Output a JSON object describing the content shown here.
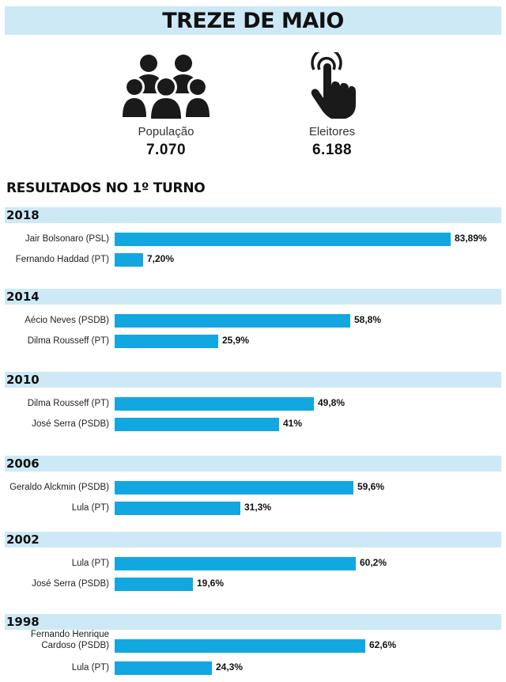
{
  "header": {
    "title": "TREZE DE MAIO"
  },
  "stats": [
    {
      "label": "População",
      "value": "7.070",
      "icon": "people-group-icon"
    },
    {
      "label": "Eleitores",
      "value": "6.188",
      "icon": "touch-hand-icon"
    }
  ],
  "section_title": "RESULTADOS NO 1º TURNO",
  "colors": {
    "bar": "#12a7e0",
    "band": "#cde9f6"
  },
  "chart_data": {
    "type": "bar",
    "orientation": "horizontal",
    "unit": "%",
    "groups": [
      {
        "year": "2018",
        "items": [
          {
            "candidate": [
              "Jair Bolsonaro (PSL)"
            ],
            "value": 83.89,
            "label": "83,89%"
          },
          {
            "candidate": [
              "Fernando Haddad (PT)"
            ],
            "value": 7.2,
            "label": "7,20%"
          }
        ]
      },
      {
        "year": "2014",
        "items": [
          {
            "candidate": [
              "Aécio Neves (PSDB)"
            ],
            "value": 58.8,
            "label": "58,8%"
          },
          {
            "candidate": [
              "Dilma Rousseff (PT)"
            ],
            "value": 25.9,
            "label": "25,9%"
          }
        ]
      },
      {
        "year": "2010",
        "items": [
          {
            "candidate": [
              "Dilma Rousseff (PT)"
            ],
            "value": 49.8,
            "label": "49,8%"
          },
          {
            "candidate": [
              "José Serra (PSDB)"
            ],
            "value": 41,
            "label": "41%"
          }
        ]
      },
      {
        "year": "2006",
        "items": [
          {
            "candidate": [
              "Geraldo Alckmin (PSDB)"
            ],
            "value": 59.6,
            "label": "59,6%"
          },
          {
            "candidate": [
              "Lula (PT)"
            ],
            "value": 31.3,
            "label": "31,3%"
          }
        ]
      },
      {
        "year": "2002",
        "items": [
          {
            "candidate": [
              "Lula (PT)"
            ],
            "value": 60.2,
            "label": "60,2%"
          },
          {
            "candidate": [
              "José Serra (PSDB)"
            ],
            "value": 19.6,
            "label": "19,6%"
          }
        ]
      },
      {
        "year": "1998",
        "items": [
          {
            "candidate": [
              "Fernando Henrique",
              "Cardoso (PSDB)"
            ],
            "value": 62.6,
            "label": "62,6%"
          },
          {
            "candidate": [
              "Lula (PT)"
            ],
            "value": 24.3,
            "label": "24,3%"
          }
        ]
      }
    ]
  }
}
